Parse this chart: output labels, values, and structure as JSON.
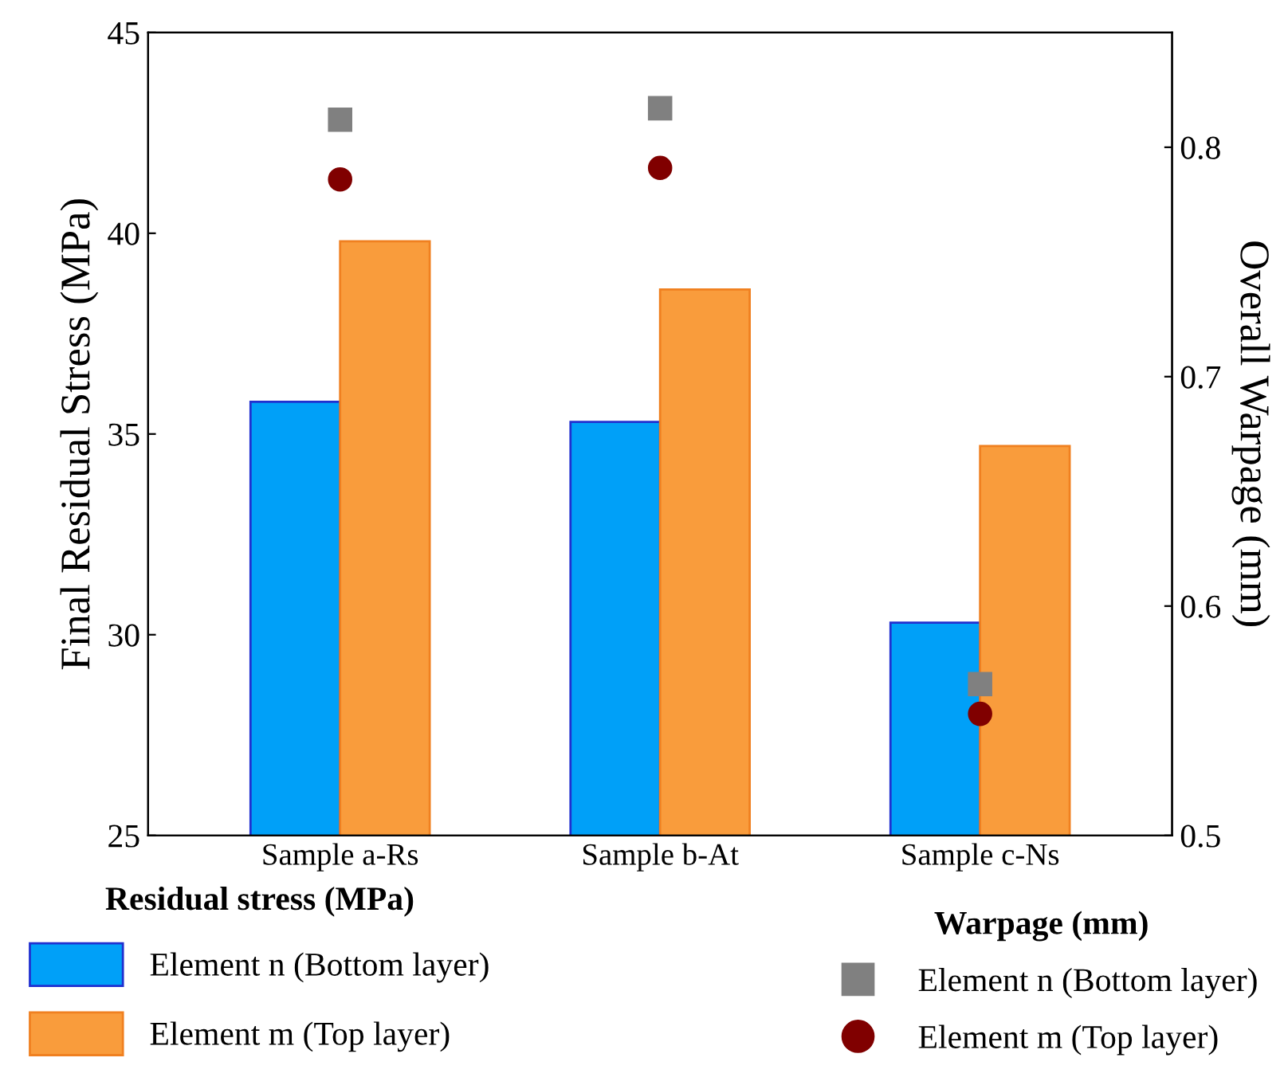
{
  "chart_data": {
    "type": "bar",
    "categories": [
      "Sample a-Rs",
      "Sample b-At",
      "Sample c-Ns"
    ],
    "ylabel": "Final Residual Stress (MPa)",
    "y2label": "Overall Warpage (mm)",
    "ylim": [
      25,
      45
    ],
    "yticks": [
      25,
      30,
      35,
      40,
      45
    ],
    "y2lim": [
      0.5,
      0.85
    ],
    "y2ticks": [
      0.5,
      0.6,
      0.7,
      0.8
    ],
    "legend_title": [
      "Residual stress (MPa)",
      "Warpage (mm)"
    ],
    "legend": "bottom",
    "grid": false,
    "series": [
      {
        "name": "Element n (Bottom layer)",
        "color": "#00a0f8",
        "values": [
          35.8,
          35.3,
          30.3
        ]
      },
      {
        "name": "Element m (Top layer)",
        "color": "#f99c3c",
        "values": [
          39.8,
          38.6,
          34.7
        ]
      },
      {
        "name": "Element n (Bottom layer)",
        "type": "scatter",
        "axis": "y2",
        "marker": "square",
        "color": "#808080",
        "x": [
          "Sample a-Rs",
          "Sample b-At",
          "Sample c-Ns"
        ],
        "values": [
          0.812,
          0.817,
          0.566
        ]
      },
      {
        "name": "Element m (Top layer)",
        "type": "scatter",
        "axis": "y2",
        "marker": "circle",
        "color": "#800000",
        "x": [
          "Sample a-Rs",
          "Sample b-At",
          "Sample c-Ns"
        ],
        "values": [
          0.786,
          0.791,
          0.553
        ]
      }
    ]
  }
}
